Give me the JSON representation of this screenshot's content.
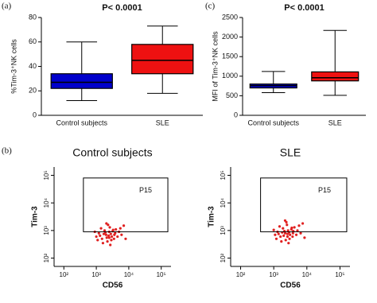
{
  "chart_data": [
    {
      "type": "box",
      "panel_label": "(a)",
      "title": "P< 0.0001",
      "ylabel": "%Tim-3⁺NK cells",
      "categories": [
        "Control subjects",
        "SLE"
      ],
      "colors": [
        "#0000cc",
        "#ee1111"
      ],
      "min": [
        12,
        18
      ],
      "q1": [
        22,
        34
      ],
      "median": [
        27,
        45
      ],
      "q3": [
        34,
        58
      ],
      "max": [
        60,
        73
      ],
      "ylim": [
        0,
        80
      ],
      "yticks": [
        0,
        20,
        40,
        60,
        80
      ]
    },
    {
      "type": "box",
      "panel_label": "(c)",
      "title": "P< 0.0001",
      "ylabel": "MFI of Tim-3⁺NK cells",
      "categories": [
        "Control subjects",
        "SLE"
      ],
      "colors": [
        "#0000cc",
        "#ee1111"
      ],
      "min": [
        580,
        510
      ],
      "q1": [
        700,
        880
      ],
      "median": [
        760,
        960
      ],
      "q3": [
        800,
        1110
      ],
      "max": [
        1120,
        2170
      ],
      "ylim": [
        0,
        2500
      ],
      "yticks": [
        0,
        500,
        1000,
        1500,
        2000,
        2500
      ]
    },
    {
      "type": "scatter",
      "panel_label": "(b)",
      "title": "Control subjects",
      "xlabel": "CD56",
      "ylabel": "Tim-3",
      "log_scale": true,
      "color": "#e02020",
      "gate": {
        "label": "P15",
        "xlim": [
          400,
          160000
        ],
        "ylim": [
          900,
          80000
        ]
      },
      "xlim": [
        50,
        200000
      ],
      "ylim": [
        50,
        200000
      ],
      "xticks": [
        {
          "value": 100,
          "label": "10²"
        },
        {
          "value": 1000,
          "label": "10³"
        },
        {
          "value": 10000,
          "label": "10⁴"
        },
        {
          "value": 100000,
          "label": "10⁵"
        }
      ],
      "yticks": [
        {
          "value": 100,
          "label": "10²"
        },
        {
          "value": 1000,
          "label": "10³"
        },
        {
          "value": 10000,
          "label": "10⁴"
        },
        {
          "value": 100000,
          "label": "10⁵"
        }
      ],
      "x": [
        2000,
        2500,
        1500,
        3000,
        1200,
        4000,
        2200,
        1800,
        2800,
        3500,
        1000,
        5000,
        2600,
        1600,
        3200,
        2100,
        6000,
        900,
        2400,
        3800,
        1400,
        2900,
        7000,
        1700,
        2300,
        4500,
        1100,
        3300,
        2700,
        1900,
        8000,
        2050,
        3600,
        1300,
        2500,
        5500
      ],
      "y": [
        700,
        900,
        500,
        600,
        800,
        1100,
        400,
        1000,
        750,
        500,
        600,
        900,
        1300,
        350,
        950,
        550,
        700,
        900,
        650,
        800,
        1200,
        450,
        1500,
        750,
        1600,
        600,
        450,
        1050,
        300,
        850,
        500,
        1800,
        700,
        650,
        550,
        1200
      ]
    },
    {
      "type": "scatter",
      "title": "SLE",
      "xlabel": "CD56",
      "ylabel": "Tim-3",
      "log_scale": true,
      "color": "#e02020",
      "gate": {
        "label": "P15",
        "xlim": [
          400,
          160000
        ],
        "ylim": [
          900,
          80000
        ]
      },
      "xlim": [
        50,
        200000
      ],
      "ylim": [
        50,
        200000
      ],
      "xticks": [
        {
          "value": 100,
          "label": "10²"
        },
        {
          "value": 1000,
          "label": "10³"
        },
        {
          "value": 10000,
          "label": "10⁴"
        },
        {
          "value": 100000,
          "label": "10⁵"
        }
      ],
      "yticks": [
        {
          "value": 100,
          "label": "10²"
        },
        {
          "value": 1000,
          "label": "10³"
        },
        {
          "value": 10000,
          "label": "10⁴"
        },
        {
          "value": 100000,
          "label": "10⁵"
        }
      ],
      "x": [
        2200,
        2700,
        1600,
        3100,
        1300,
        4200,
        2300,
        1900,
        2900,
        3700,
        1100,
        5200,
        2500,
        1700,
        3400,
        2000,
        6500,
        1000,
        2600,
        3900,
        1500,
        3000,
        7500,
        1800,
        2400,
        4800,
        1200,
        3500,
        2800,
        2100,
        8500,
        2200,
        3800,
        1400,
        2600,
        5800
      ],
      "y": [
        800,
        1000,
        600,
        700,
        900,
        1300,
        450,
        1200,
        850,
        600,
        700,
        1000,
        1600,
        400,
        1100,
        650,
        800,
        1050,
        750,
        950,
        1400,
        500,
        1800,
        850,
        2000,
        700,
        500,
        1250,
        350,
        950,
        550,
        2300,
        800,
        750,
        600,
        1500
      ]
    }
  ]
}
